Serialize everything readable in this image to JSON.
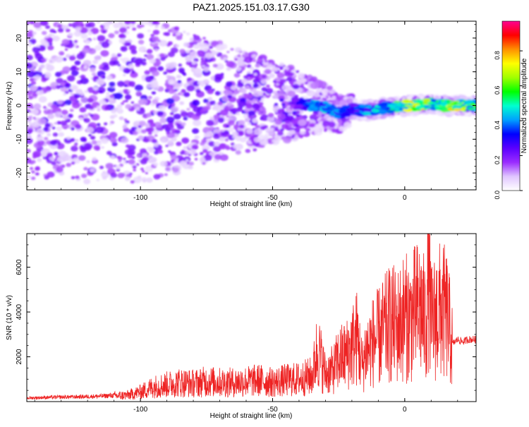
{
  "figure": {
    "title": "PAZ1.2025.151.03.17.G30"
  },
  "chart_data": [
    {
      "type": "heatmap",
      "title": "PAZ1.2025.151.03.17.G30",
      "xlabel": "Height of straight line (km)",
      "ylabel": "Frequency (Hz)",
      "xlim": [
        -143,
        27
      ],
      "ylim": [
        -25,
        25
      ],
      "xticks": [
        -100,
        -50,
        0
      ],
      "yticks": [
        -20,
        -10,
        0,
        10,
        20
      ],
      "colorbar": {
        "label": "Normalized spectral amplitude",
        "range": [
          0,
          0.97
        ],
        "ticks": [
          0.0,
          0.2,
          0.4,
          0.6,
          0.8
        ],
        "tick_labels": [
          "0.0",
          "0.2",
          "0.4",
          "0.6",
          "0.8"
        ],
        "colormap": [
          "#ffffff",
          "#e0c6ff",
          "#9a2cff",
          "#5a00ff",
          "#0000ff",
          "#00a0ff",
          "#00ffd0",
          "#00ff00",
          "#a0ff00",
          "#ffff00",
          "#ff9000",
          "#ff0000",
          "#ff0090"
        ]
      },
      "ridge": [
        {
          "x": -40,
          "y": 0.5,
          "amp": 0.3
        },
        {
          "x": -35,
          "y": 0.0,
          "amp": 0.45
        },
        {
          "x": -30,
          "y": -0.5,
          "amp": 0.5
        },
        {
          "x": -25,
          "y": -2.5,
          "amp": 0.4
        },
        {
          "x": -20,
          "y": -1.0,
          "amp": 0.35
        },
        {
          "x": -15,
          "y": -1.5,
          "amp": 0.45
        },
        {
          "x": -10,
          "y": -1.0,
          "amp": 0.5
        },
        {
          "x": -5,
          "y": -0.5,
          "amp": 0.55
        },
        {
          "x": 0,
          "y": 0.0,
          "amp": 0.75
        },
        {
          "x": 5,
          "y": 0.0,
          "amp": 0.85
        },
        {
          "x": 10,
          "y": 0.5,
          "amp": 0.6
        },
        {
          "x": 15,
          "y": 0.0,
          "amp": 0.7
        },
        {
          "x": 20,
          "y": 0.0,
          "amp": 0.8
        },
        {
          "x": 25,
          "y": 0.0,
          "amp": 0.6
        }
      ]
    },
    {
      "type": "line",
      "xlabel": "Height of straight line (km)",
      "ylabel": "SNR (10 * v/v)",
      "xlim": [
        -143,
        27
      ],
      "ylim": [
        0,
        7500
      ],
      "xticks": [
        -100,
        -50,
        0
      ],
      "yticks": [
        2000,
        4000,
        6000
      ],
      "color": "#ee2222",
      "x": [
        -143,
        -135,
        -125,
        -115,
        -105,
        -100,
        -95,
        -90,
        -85,
        -80,
        -75,
        -70,
        -65,
        -60,
        -55,
        -50,
        -45,
        -40,
        -35,
        -33,
        -30,
        -27,
        -25,
        -22,
        -20,
        -18,
        -16,
        -15,
        -12,
        -10,
        -8,
        -5,
        -3,
        0,
        2,
        4,
        6,
        8,
        9,
        10,
        12,
        14,
        16,
        18,
        20,
        22,
        24,
        27
      ],
      "y": [
        150,
        180,
        200,
        230,
        300,
        450,
        700,
        800,
        900,
        850,
        950,
        900,
        900,
        950,
        1000,
        900,
        1000,
        1050,
        1200,
        2500,
        1300,
        1500,
        2000,
        2200,
        2600,
        3000,
        1600,
        2300,
        2800,
        3000,
        3300,
        3700,
        3500,
        4000,
        3800,
        4200,
        4400,
        3600,
        6500,
        3600,
        4100,
        4300,
        4000,
        2600,
        2800,
        2700,
        2800,
        2800
      ]
    }
  ]
}
